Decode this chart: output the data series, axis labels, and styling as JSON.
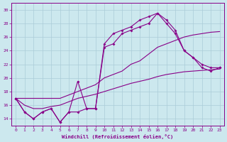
{
  "xlabel": "Windchill (Refroidissement éolien,°C)",
  "bg_color": "#cce8ee",
  "grid_color": "#aaccd8",
  "line_color": "#880088",
  "xlim": [
    -0.5,
    23.5
  ],
  "ylim": [
    13.0,
    31.0
  ],
  "yticks": [
    14,
    16,
    18,
    20,
    22,
    24,
    26,
    28,
    30
  ],
  "xticks": [
    0,
    1,
    2,
    3,
    4,
    5,
    6,
    7,
    8,
    9,
    10,
    11,
    12,
    13,
    14,
    15,
    16,
    17,
    18,
    19,
    20,
    21,
    22,
    23
  ],
  "series": [
    {
      "x": [
        0,
        1,
        2,
        3,
        4,
        5,
        6,
        7,
        8,
        9,
        10,
        11,
        12,
        13,
        14,
        15,
        16,
        17,
        18,
        19,
        20,
        21,
        22,
        23
      ],
      "y": [
        17.0,
        15.0,
        14.0,
        15.0,
        15.5,
        13.5,
        15.0,
        19.5,
        15.5,
        15.5,
        25.0,
        26.5,
        27.0,
        27.5,
        28.5,
        29.0,
        29.5,
        28.5,
        27.0,
        24.0,
        23.0,
        22.0,
        21.5,
        21.5
      ],
      "marker": true
    },
    {
      "x": [
        0,
        1,
        2,
        3,
        4,
        5,
        6,
        7,
        8,
        9,
        10,
        11,
        12,
        13,
        14,
        15,
        16,
        17,
        18,
        19,
        20,
        21,
        22,
        23
      ],
      "y": [
        17.0,
        15.0,
        14.0,
        15.0,
        15.5,
        13.5,
        15.0,
        15.0,
        15.5,
        15.5,
        24.5,
        25.0,
        26.5,
        27.0,
        27.5,
        28.0,
        29.5,
        28.0,
        26.5,
        24.0,
        23.0,
        21.5,
        21.0,
        21.5
      ],
      "marker": true
    },
    {
      "x": [
        0,
        1,
        2,
        3,
        4,
        5,
        6,
        7,
        8,
        9,
        10,
        11,
        12,
        13,
        14,
        15,
        16,
        17,
        18,
        19,
        20,
        21,
        22,
        23
      ],
      "y": [
        17.0,
        16.0,
        15.5,
        15.5,
        15.8,
        16.0,
        16.5,
        17.0,
        17.3,
        17.6,
        18.0,
        18.4,
        18.8,
        19.2,
        19.5,
        19.8,
        20.2,
        20.5,
        20.7,
        20.9,
        21.0,
        21.1,
        21.2,
        21.3
      ],
      "marker": false
    },
    {
      "x": [
        0,
        1,
        2,
        3,
        4,
        5,
        6,
        7,
        8,
        9,
        10,
        11,
        12,
        13,
        14,
        15,
        16,
        17,
        18,
        19,
        20,
        21,
        22,
        23
      ],
      "y": [
        17.0,
        17.0,
        17.0,
        17.0,
        17.0,
        17.0,
        17.5,
        18.0,
        18.5,
        19.0,
        20.0,
        20.5,
        21.0,
        22.0,
        22.5,
        23.5,
        24.5,
        25.0,
        25.5,
        26.0,
        26.3,
        26.5,
        26.7,
        26.8
      ],
      "marker": false
    }
  ]
}
